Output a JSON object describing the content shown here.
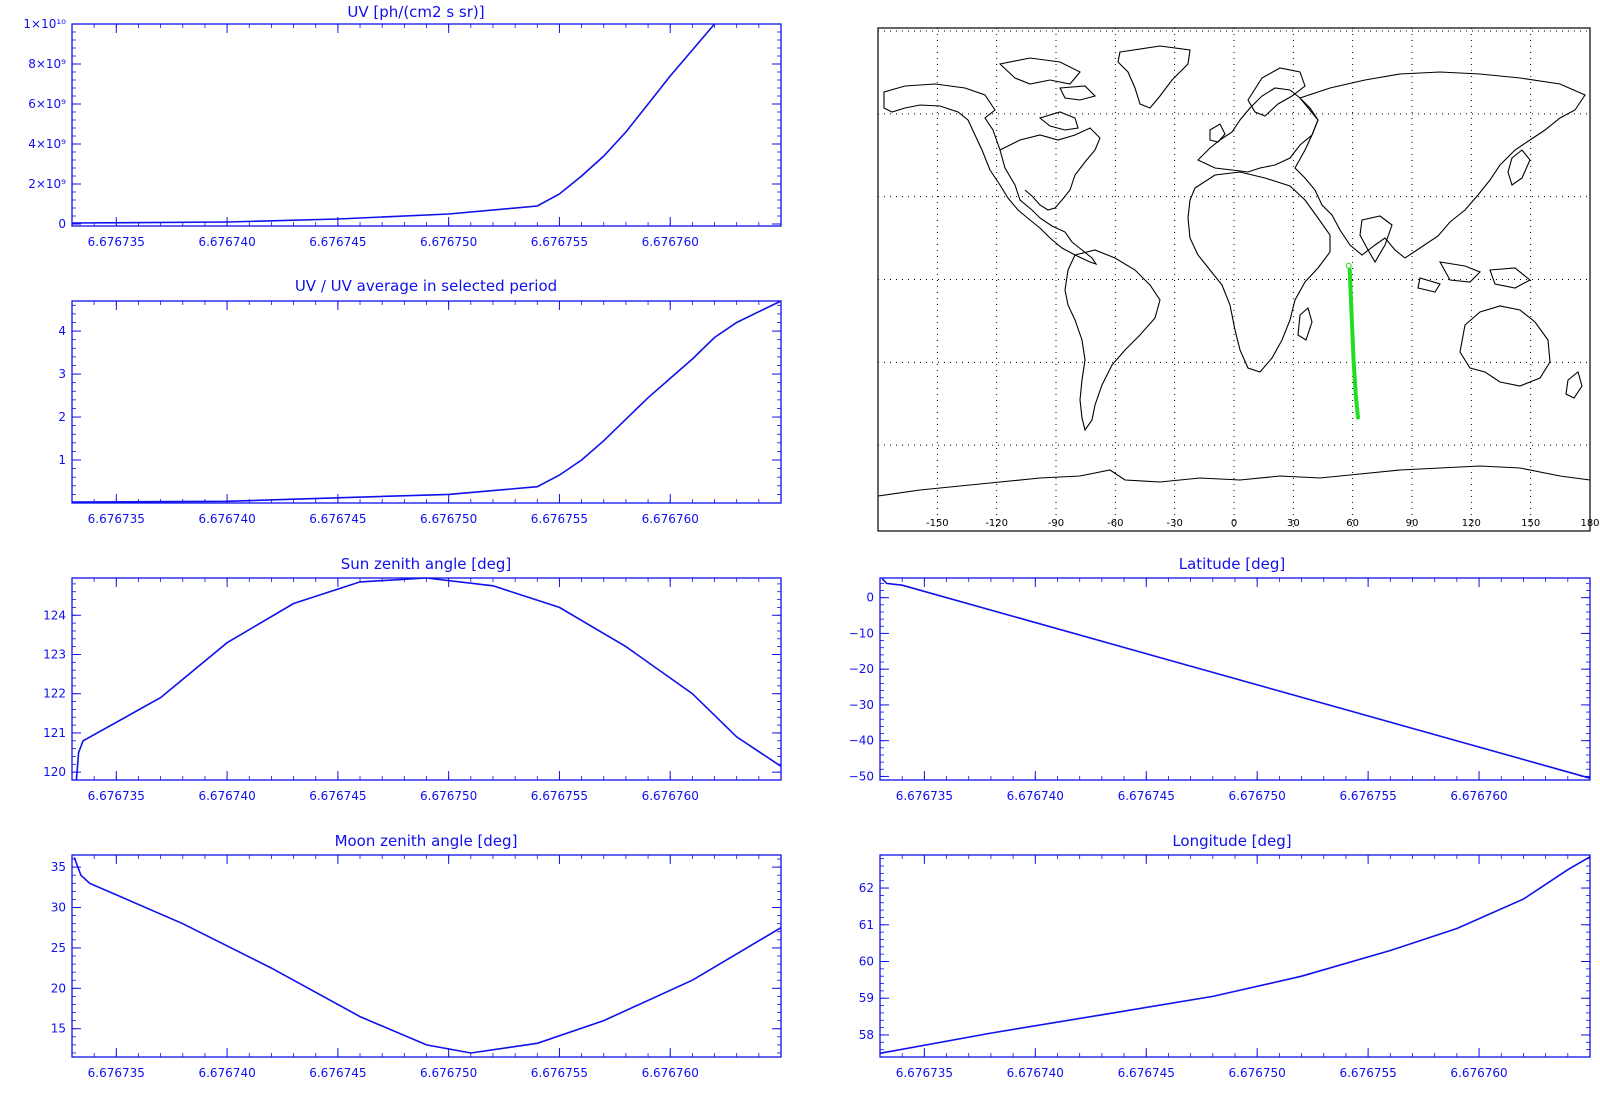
{
  "chart_data": [
    {
      "id": "uv",
      "type": "line",
      "title": "UV [ph/(cm2 s sr)]",
      "xlabel": "",
      "ylabel": "",
      "xlim": [
        6.676733,
        6.676765
      ],
      "ylim": [
        -100000000,
        10000000000
      ],
      "xticks": [
        "6.676735",
        "6.676740",
        "6.676745",
        "6.676750",
        "6.676755",
        "6.676760"
      ],
      "yticks": [
        {
          "value": 0,
          "label": "0"
        },
        {
          "value": 2000000000,
          "label": "2×10⁹"
        },
        {
          "value": 4000000000,
          "label": "4×10⁹"
        },
        {
          "value": 6000000000,
          "label": "6×10⁹"
        },
        {
          "value": 8000000000,
          "label": "8×10⁹"
        },
        {
          "value": 10000000000,
          "label": "1×10¹⁰"
        }
      ],
      "color": "#1010ee",
      "grid": false,
      "series": [
        {
          "x": [
            6.676733,
            6.67674,
            6.676745,
            6.67675,
            6.676754,
            6.676755,
            6.676756,
            6.676757,
            6.676758,
            6.676759,
            6.67676,
            6.676761,
            6.676762
          ],
          "y": [
            50000000,
            100000000,
            250000000,
            500000000,
            900000000,
            1500000000,
            2400000000,
            3400000000,
            4600000000,
            6000000000,
            7400000000,
            8700000000,
            10000000000
          ]
        }
      ]
    },
    {
      "id": "uv-ratio",
      "type": "line",
      "title": "UV / UV average in selected period",
      "xlabel": "",
      "ylabel": "",
      "xlim": [
        6.676733,
        6.676765
      ],
      "ylim": [
        0,
        4.7
      ],
      "xticks": [
        "6.676735",
        "6.676740",
        "6.676745",
        "6.676750",
        "6.676755",
        "6.676760"
      ],
      "yticks": [
        {
          "value": 1,
          "label": "1"
        },
        {
          "value": 2,
          "label": "2"
        },
        {
          "value": 3,
          "label": "3"
        },
        {
          "value": 4,
          "label": "4"
        }
      ],
      "color": "#1010ee",
      "grid": false,
      "series": [
        {
          "x": [
            6.676733,
            6.67674,
            6.676745,
            6.67675,
            6.676754,
            6.676755,
            6.676756,
            6.676757,
            6.676758,
            6.676759,
            6.67676,
            6.676761,
            6.676762,
            6.676763,
            6.676764,
            6.676765
          ],
          "y": [
            0.02,
            0.04,
            0.12,
            0.2,
            0.38,
            0.65,
            1.0,
            1.45,
            1.95,
            2.45,
            2.9,
            3.35,
            3.85,
            4.2,
            4.45,
            4.7
          ]
        }
      ]
    },
    {
      "id": "sun-zenith",
      "type": "line",
      "title": "Sun zenith angle [deg]",
      "xlabel": "",
      "ylabel": "",
      "xlim": [
        6.676733,
        6.676765
      ],
      "ylim": [
        119.8,
        124.95
      ],
      "xticks": [
        "6.676735",
        "6.676740",
        "6.676745",
        "6.676750",
        "6.676755",
        "6.676760"
      ],
      "yticks": [
        {
          "value": 120,
          "label": "120"
        },
        {
          "value": 121,
          "label": "121"
        },
        {
          "value": 122,
          "label": "122"
        },
        {
          "value": 123,
          "label": "123"
        },
        {
          "value": 124,
          "label": "124"
        }
      ],
      "color": "#1010ee",
      "grid": false,
      "series": [
        {
          "x": [
            6.6767332,
            6.6767333,
            6.6767335,
            6.676737,
            6.67674,
            6.676743,
            6.676746,
            6.676749,
            6.676752,
            6.676755,
            6.676758,
            6.676761,
            6.676763,
            6.676765
          ],
          "y": [
            119.8,
            120.5,
            120.8,
            121.9,
            123.3,
            124.3,
            124.85,
            124.95,
            124.75,
            124.2,
            123.2,
            122.0,
            120.9,
            120.15
          ]
        }
      ]
    },
    {
      "id": "latitude",
      "type": "line",
      "title": "Latitude [deg]",
      "xlabel": "",
      "ylabel": "",
      "xlim": [
        6.676733,
        6.676765
      ],
      "ylim": [
        -51,
        5.5
      ],
      "xticks": [
        "6.676735",
        "6.676740",
        "6.676745",
        "6.676750",
        "6.676755",
        "6.676760"
      ],
      "yticks": [
        {
          "value": -50,
          "label": "−50"
        },
        {
          "value": -40,
          "label": "−40"
        },
        {
          "value": -30,
          "label": "−30"
        },
        {
          "value": -20,
          "label": "−20"
        },
        {
          "value": -10,
          "label": "−10"
        },
        {
          "value": 0,
          "label": "0"
        }
      ],
      "color": "#1010ee",
      "grid": false,
      "series": [
        {
          "x": [
            6.6767331,
            6.6767333,
            6.676734,
            6.676765
          ],
          "y": [
            5.3,
            4.0,
            3.5,
            -50.5
          ]
        }
      ]
    },
    {
      "id": "moon-zenith",
      "type": "line",
      "title": "Moon zenith angle [deg]",
      "xlabel": "",
      "ylabel": "",
      "xlim": [
        6.676733,
        6.676765
      ],
      "ylim": [
        11.5,
        36.5
      ],
      "xticks": [
        "6.676735",
        "6.676740",
        "6.676745",
        "6.676750",
        "6.676755",
        "6.676760"
      ],
      "yticks": [
        {
          "value": 15,
          "label": "15"
        },
        {
          "value": 20,
          "label": "20"
        },
        {
          "value": 25,
          "label": "25"
        },
        {
          "value": 30,
          "label": "30"
        },
        {
          "value": 35,
          "label": "35"
        }
      ],
      "color": "#1010ee",
      "grid": false,
      "series": [
        {
          "x": [
            6.6767331,
            6.6767334,
            6.6767338,
            6.676738,
            6.676742,
            6.676746,
            6.676749,
            6.676751,
            6.676754,
            6.676757,
            6.676761,
            6.676765
          ],
          "y": [
            36.2,
            34.0,
            33.0,
            28.0,
            22.5,
            16.5,
            13.0,
            12.0,
            13.2,
            16.0,
            21.0,
            27.5
          ]
        }
      ]
    },
    {
      "id": "longitude",
      "type": "line",
      "title": "Longitude [deg]",
      "xlabel": "",
      "ylabel": "",
      "xlim": [
        6.676733,
        6.676765
      ],
      "ylim": [
        57.4,
        62.9
      ],
      "xticks": [
        "6.676735",
        "6.676740",
        "6.676745",
        "6.676750",
        "6.676755",
        "6.676760"
      ],
      "yticks": [
        {
          "value": 58,
          "label": "58"
        },
        {
          "value": 59,
          "label": "59"
        },
        {
          "value": 60,
          "label": "60"
        },
        {
          "value": 61,
          "label": "61"
        },
        {
          "value": 62,
          "label": "62"
        }
      ],
      "color": "#1010ee",
      "grid": false,
      "series": [
        {
          "x": [
            6.676733,
            6.676738,
            6.676743,
            6.676748,
            6.676752,
            6.676756,
            6.676759,
            6.676762,
            6.676764,
            6.676765
          ],
          "y": [
            57.5,
            58.05,
            58.55,
            59.05,
            59.6,
            60.3,
            60.9,
            61.7,
            62.5,
            62.85
          ]
        }
      ]
    }
  ],
  "map": {
    "lon_ticks": [
      "-150",
      "-120",
      "-90",
      "-60",
      "-30",
      "0",
      "30",
      "60",
      "90",
      "120",
      "150",
      "180"
    ],
    "track_color": "#22dd22",
    "track": [
      {
        "lon": 58.5,
        "lat": 3.5
      },
      {
        "lon": 59.4,
        "lat": -12
      },
      {
        "lon": 60.5,
        "lat": -30
      },
      {
        "lon": 61.6,
        "lat": -42
      },
      {
        "lon": 62.7,
        "lat": -50
      }
    ],
    "marker": {
      "lon": 58.0,
      "lat": 5.0
    }
  }
}
